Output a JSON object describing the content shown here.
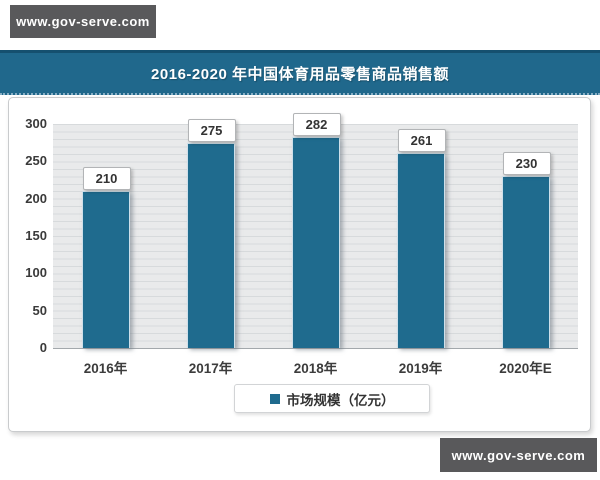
{
  "watermark": {
    "top": "www.gov-serve.com",
    "bottom": "www.gov-serve.com"
  },
  "header": {
    "title": "2016-2020 年中国体育用品零售商品销售额"
  },
  "colors": {
    "accent": "#1f6b8e",
    "banner_bg": "#20688c",
    "badge_bg": "#59595b",
    "plot_bg": "#e9eaeb"
  },
  "chart_data": {
    "type": "bar",
    "title": "2016-2020 年中国体育用品零售商品销售额",
    "categories": [
      "2016年",
      "2017年",
      "2018年",
      "2019年",
      "2020年E"
    ],
    "values": [
      210,
      275,
      282,
      261,
      230
    ],
    "series_name": "市场规模（亿元）",
    "legend": [
      "市场规模（亿元）"
    ],
    "legend_position": "bottom",
    "xlabel": "",
    "ylabel": "",
    "ylim": [
      0,
      300
    ],
    "yticks": [
      0,
      50,
      100,
      150,
      200,
      250,
      300
    ],
    "grid": "horizontal, minor every 10",
    "bar_color": "#1f6b8e",
    "value_labels": "boxed above bars"
  }
}
